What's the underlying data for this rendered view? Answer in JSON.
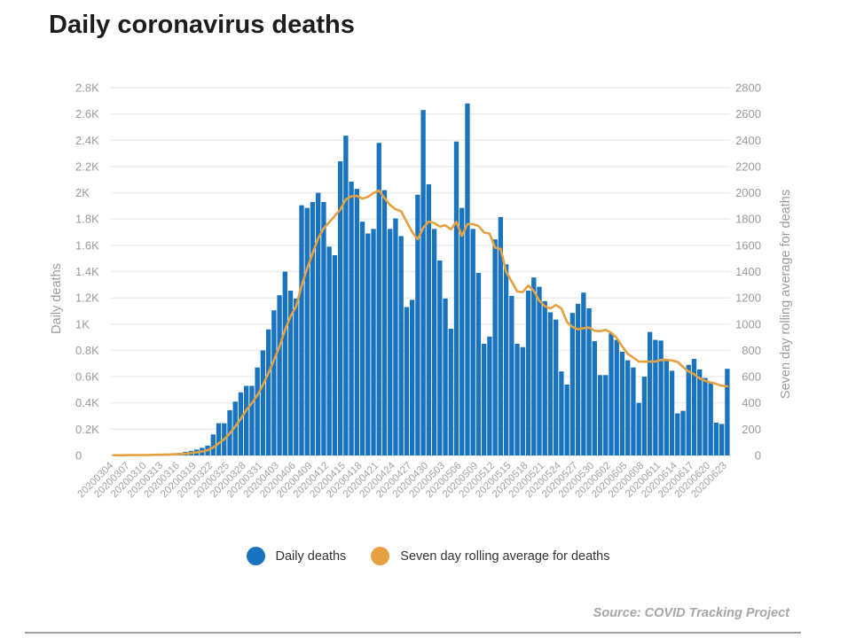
{
  "page": {
    "title": "Daily coronavirus deaths",
    "source_note": "Source: COVID Tracking Project"
  },
  "legend": [
    {
      "label": "Daily deaths",
      "color": "#1a73be",
      "icon": "circle-swatch"
    },
    {
      "label": "Seven day rolling average for deaths",
      "color": "#e5a13f",
      "icon": "circle-swatch"
    }
  ],
  "chart_data": {
    "type": "bar",
    "title": "Daily coronavirus deaths",
    "grid": true,
    "legend_position": "bottom",
    "x_tick_step": 3,
    "left_axis": {
      "label": "Daily deaths",
      "min": 0,
      "max": 2800,
      "step": 200,
      "ticks": [
        "0",
        "0.2K",
        "0.4K",
        "0.6K",
        "0.8K",
        "1K",
        "1.2K",
        "1.4K",
        "1.6K",
        "1.8K",
        "2K",
        "2.2K",
        "2.4K",
        "2.6K",
        "2.8K"
      ]
    },
    "right_axis": {
      "label": "Seven day rolling average for deaths",
      "min": 0,
      "max": 2800,
      "step": 200,
      "ticks": [
        "0",
        "200",
        "400",
        "600",
        "800",
        "1000",
        "1200",
        "1400",
        "1600",
        "1800",
        "2000",
        "2200",
        "2400",
        "2600",
        "2800"
      ]
    },
    "categories": [
      "20200304",
      "20200305",
      "20200306",
      "20200307",
      "20200308",
      "20200309",
      "20200310",
      "20200311",
      "20200312",
      "20200313",
      "20200314",
      "20200315",
      "20200316",
      "20200317",
      "20200318",
      "20200319",
      "20200320",
      "20200321",
      "20200322",
      "20200323",
      "20200324",
      "20200325",
      "20200326",
      "20200327",
      "20200328",
      "20200329",
      "20200330",
      "20200331",
      "20200401",
      "20200402",
      "20200403",
      "20200404",
      "20200405",
      "20200406",
      "20200407",
      "20200408",
      "20200409",
      "20200410",
      "20200411",
      "20200412",
      "20200413",
      "20200414",
      "20200415",
      "20200416",
      "20200417",
      "20200418",
      "20200419",
      "20200420",
      "20200421",
      "20200422",
      "20200423",
      "20200424",
      "20200425",
      "20200426",
      "20200427",
      "20200428",
      "20200429",
      "20200430",
      "20200501",
      "20200502",
      "20200503",
      "20200504",
      "20200505",
      "20200506",
      "20200507",
      "20200508",
      "20200509",
      "20200510",
      "20200511",
      "20200512",
      "20200513",
      "20200514",
      "20200515",
      "20200516",
      "20200517",
      "20200518",
      "20200519",
      "20200520",
      "20200521",
      "20200522",
      "20200523",
      "20200524",
      "20200525",
      "20200526",
      "20200527",
      "20200528",
      "20200529",
      "20200530",
      "20200531",
      "20200601",
      "20200602",
      "20200603",
      "20200604",
      "20200605",
      "20200606",
      "20200607",
      "20200608",
      "20200609",
      "20200610",
      "20200611",
      "20200612",
      "20200613",
      "20200614",
      "20200615",
      "20200616",
      "20200617",
      "20200618",
      "20200619",
      "20200620",
      "20200621",
      "20200622",
      "20200623"
    ],
    "series": [
      {
        "name": "Daily deaths",
        "type": "bar",
        "color": "#1a73be",
        "values": [
          2,
          1,
          3,
          4,
          4,
          5,
          6,
          8,
          6,
          10,
          12,
          15,
          20,
          28,
          35,
          45,
          58,
          75,
          160,
          245,
          245,
          345,
          410,
          480,
          530,
          530,
          670,
          800,
          960,
          1105,
          1220,
          1400,
          1255,
          1195,
          1905,
          1885,
          1930,
          2000,
          1930,
          1590,
          1525,
          2240,
          2435,
          2085,
          2030,
          1780,
          1690,
          1725,
          2380,
          2020,
          1725,
          1805,
          1670,
          1130,
          1185,
          1985,
          2630,
          2065,
          1725,
          1485,
          1195,
          965,
          2390,
          1885,
          2680,
          1725,
          1390,
          850,
          905,
          1645,
          1815,
          1455,
          1215,
          850,
          825,
          1255,
          1355,
          1285,
          1175,
          1090,
          1035,
          640,
          540,
          1085,
          1155,
          1240,
          1120,
          870,
          612,
          612,
          930,
          880,
          790,
          725,
          670,
          400,
          600,
          940,
          880,
          875,
          725,
          645,
          320,
          340,
          690,
          735,
          655,
          590,
          555,
          250,
          240,
          660
        ]
      },
      {
        "name": "Seven day rolling average for deaths",
        "type": "line",
        "color": "#e5a13f",
        "derivation": "7-day trailing average of Daily deaths values (computed at render)"
      }
    ]
  }
}
